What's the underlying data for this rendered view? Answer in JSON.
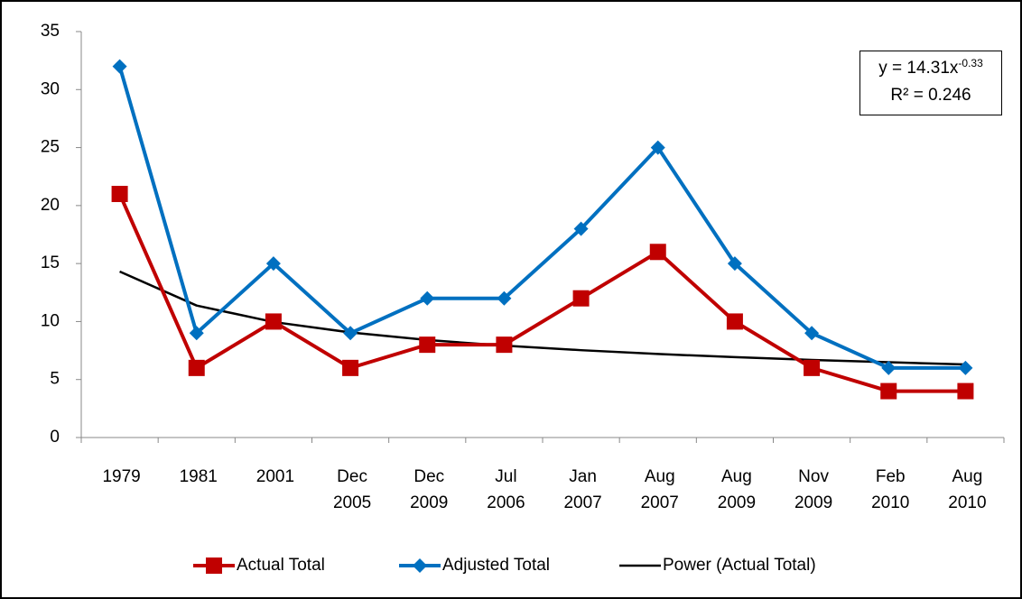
{
  "chart_data": {
    "type": "line",
    "categories": [
      "1979",
      "1981",
      "2001",
      "Dec 2005",
      "Dec 2009",
      "Jul 2006",
      "Jan 2007",
      "Aug 2007",
      "Aug 2009",
      "Nov 2009",
      "Feb 2010",
      "Aug 2010"
    ],
    "series": [
      {
        "name": "Actual Total",
        "color": "#c00000",
        "marker": "square",
        "values": [
          21,
          6,
          10,
          6,
          8,
          8,
          12,
          16,
          10,
          6,
          4,
          4
        ]
      },
      {
        "name": "Adjusted Total",
        "color": "#0070c0",
        "marker": "diamond",
        "values": [
          32,
          9,
          15,
          9,
          12,
          12,
          18,
          25,
          15,
          9,
          6,
          6
        ]
      },
      {
        "name": "Power (Actual Total)",
        "color": "#000000",
        "marker": "none",
        "values": [
          14.31,
          11.38,
          9.96,
          9.06,
          8.41,
          7.92,
          7.53,
          7.2,
          6.93,
          6.69,
          6.49,
          6.3
        ]
      }
    ],
    "trendline_equation": {
      "base": "y = 14.31x",
      "exponent": "-0.33"
    },
    "trendline_r2": "R² = 0.246",
    "ylim": [
      0,
      35
    ],
    "yticks": [
      0,
      5,
      10,
      15,
      20,
      25,
      30,
      35
    ],
    "grid": false,
    "legend": "bottom"
  }
}
